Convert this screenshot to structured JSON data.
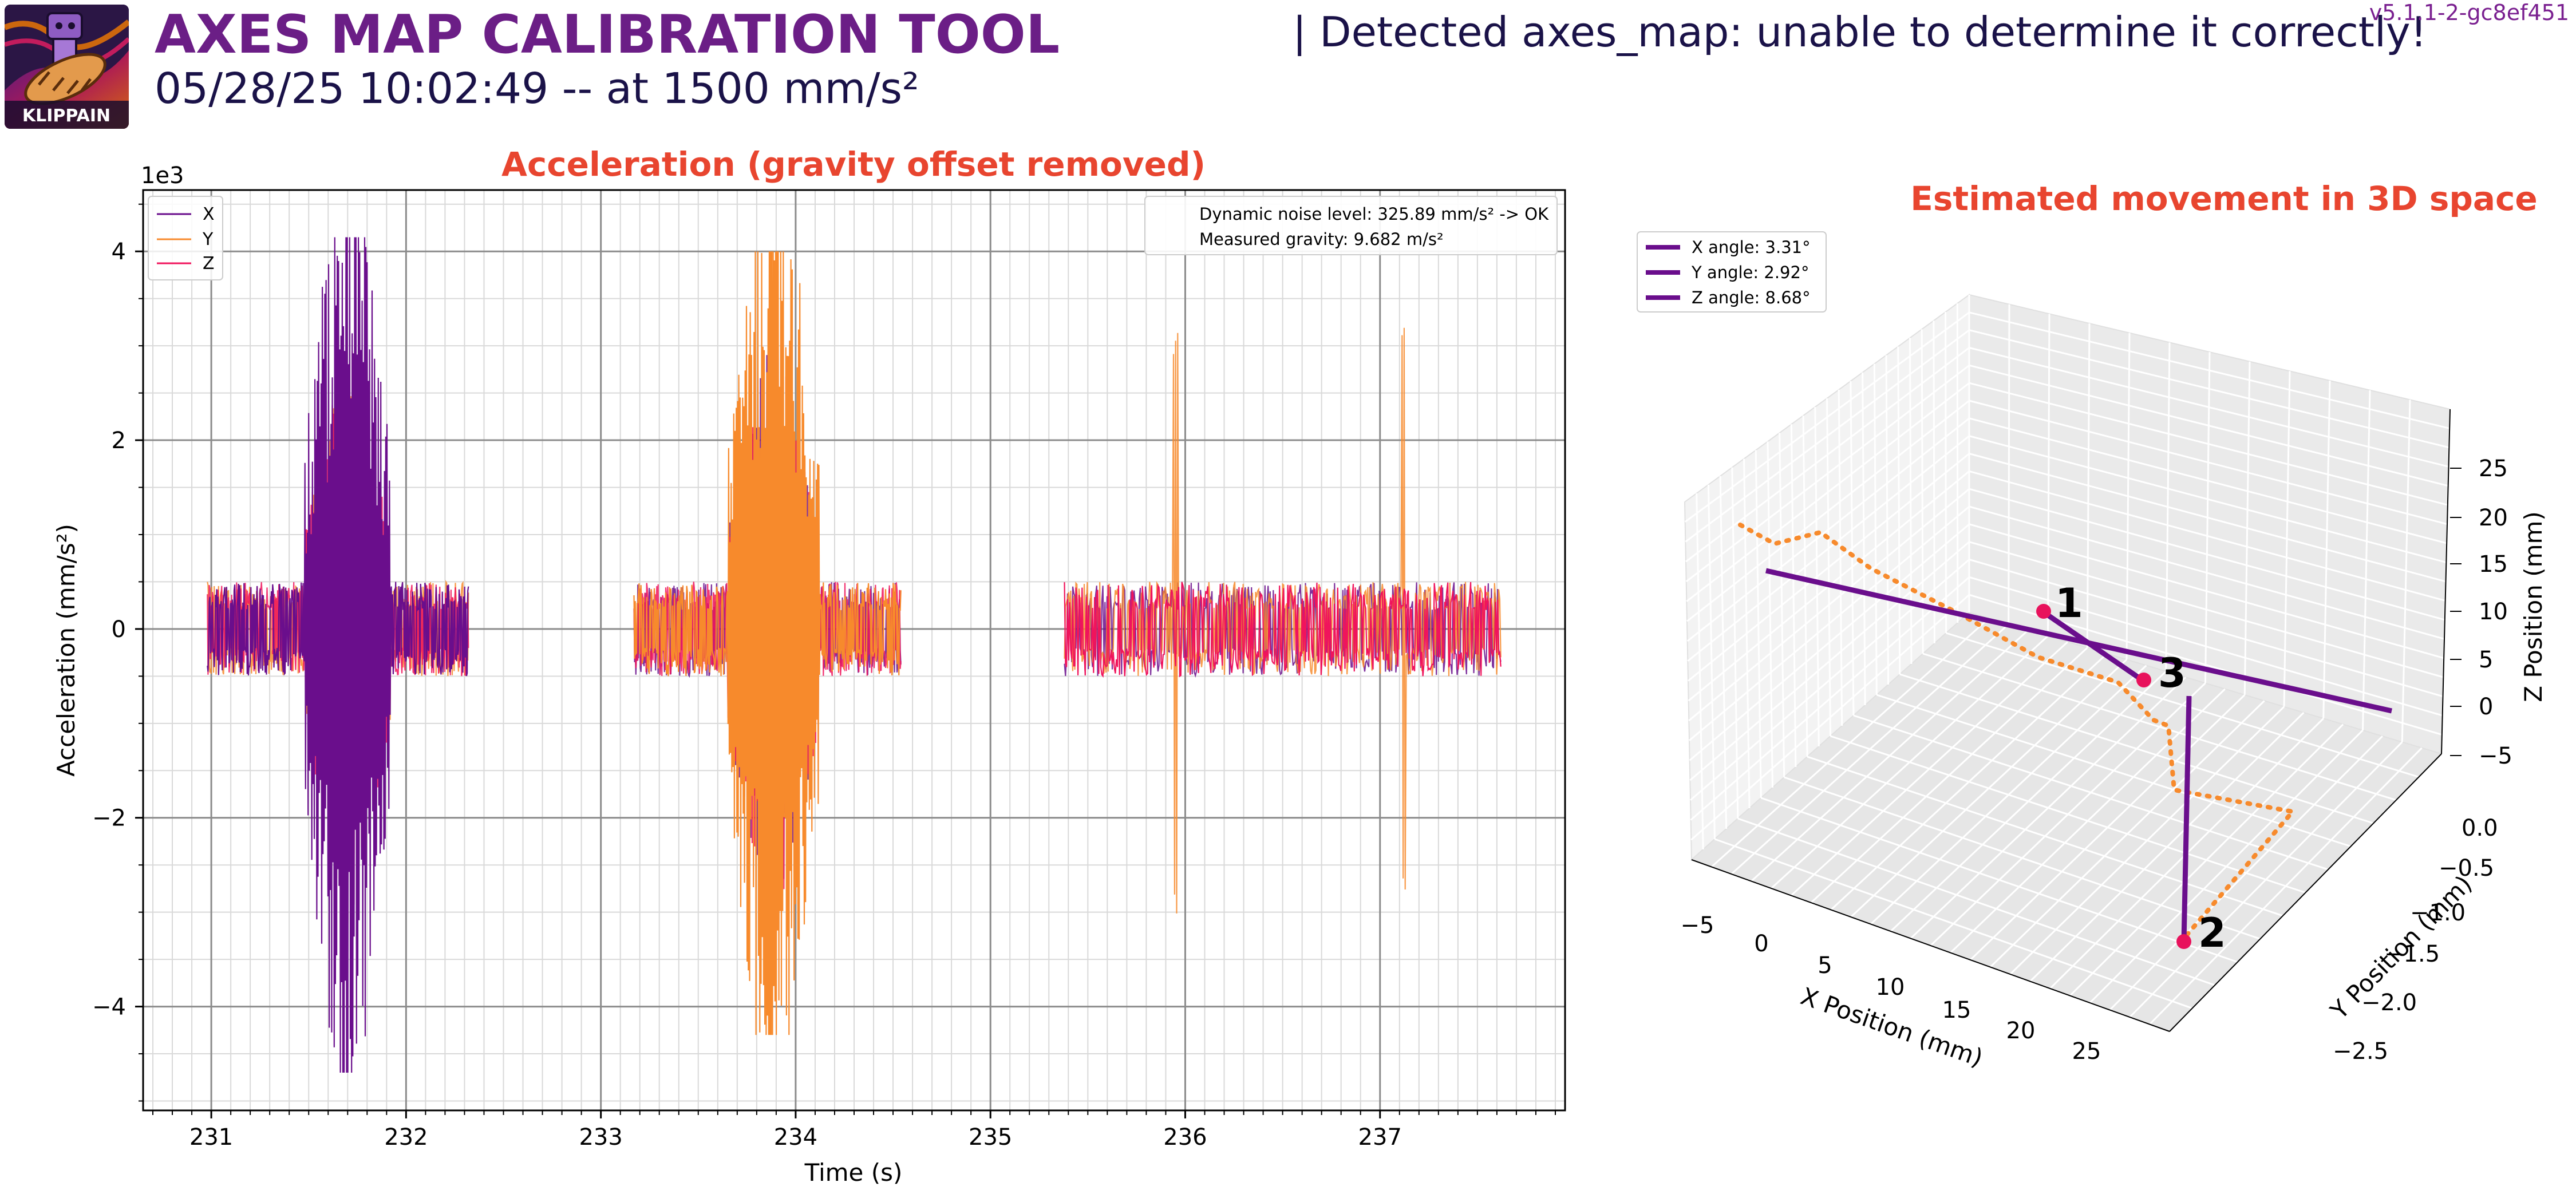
{
  "header": {
    "title": "AXES MAP CALIBRATION TOOL",
    "subtitle": "05/28/25 10:02:49 -- at 1500 mm/s²",
    "status": "| Detected axes_map: unable to determine it correctly!",
    "version": "v5.1.1-2-gc8ef451",
    "logo_text": "KLIPPAIN"
  },
  "colors": {
    "title": "#6b1e86",
    "chart_title": "#e8452f",
    "x_series": "#6a0e8c",
    "y_series": "#f78a2c",
    "z_series": "#f0145c",
    "vector": "#6a0e8c",
    "path": "#f78a2c",
    "marker": "#e8125c"
  },
  "chart_data": [
    {
      "type": "line",
      "title": "Acceleration (gravity offset removed)",
      "xlabel": "Time (s)",
      "ylabel": "Acceleration (mm/s²)",
      "y_scale_label": "1e3",
      "xlim": [
        230.65,
        237.95
      ],
      "ylim": [
        -5.1,
        4.65
      ],
      "x_ticks": [
        231,
        232,
        233,
        234,
        235,
        236,
        237
      ],
      "y_ticks": [
        -4,
        -2,
        0,
        2,
        4
      ],
      "y_tick_labels": [
        "−4",
        "−2",
        "0",
        "2",
        "4"
      ],
      "grid": true,
      "legend_position": "top-left",
      "series": [
        {
          "name": "X",
          "color": "#6a0e8c"
        },
        {
          "name": "Y",
          "color": "#f78a2c"
        },
        {
          "name": "Z",
          "color": "#f0145c"
        }
      ],
      "segments": [
        {
          "start": 230.98,
          "end": 232.32,
          "burst_start": 231.48,
          "burst_end": 231.92,
          "dominant": "X",
          "noise_range": [
            -0.85,
            0.95
          ],
          "burst_max": 4.15,
          "burst_min": -4.7
        },
        {
          "start": 233.17,
          "end": 234.54,
          "burst_start": 233.65,
          "burst_end": 234.12,
          "dominant": "Y",
          "noise_range": [
            -0.95,
            0.95
          ],
          "burst_max": 4.0,
          "burst_min": -4.3
        },
        {
          "start": 235.38,
          "end": 237.62,
          "spikes": [
            235.95,
            237.12
          ],
          "spike_max": 3.2,
          "spike_min": -3.1,
          "dominant": "Z",
          "noise_range": [
            -1.0,
            1.0
          ]
        }
      ],
      "info_box": {
        "line1": "Dynamic noise level: 325.89 mm/s² -> OK",
        "line2": "Measured gravity: 9.682 m/s²"
      }
    },
    {
      "type": "line3d",
      "title": "Estimated movement in 3D space",
      "xlabel": "X Position (mm)",
      "ylabel": "Y Position (mm)",
      "zlabel": "Z Position (mm)",
      "x_ticks": [
        "−5",
        "0",
        "5",
        "10",
        "15",
        "20",
        "25"
      ],
      "y_ticks": [
        "0.0",
        "−0.5",
        "−1.0",
        "−1.5",
        "−2.0",
        "−2.5"
      ],
      "z_ticks": [
        "25",
        "20",
        "15",
        "10",
        "5",
        "0",
        "−5"
      ],
      "legend_position": "top-left",
      "legend": [
        "X angle: 3.31°",
        "Y angle: 2.92°",
        "Z angle: 8.68°"
      ],
      "points": [
        {
          "label": "1"
        },
        {
          "label": "2"
        },
        {
          "label": "3"
        }
      ]
    }
  ]
}
